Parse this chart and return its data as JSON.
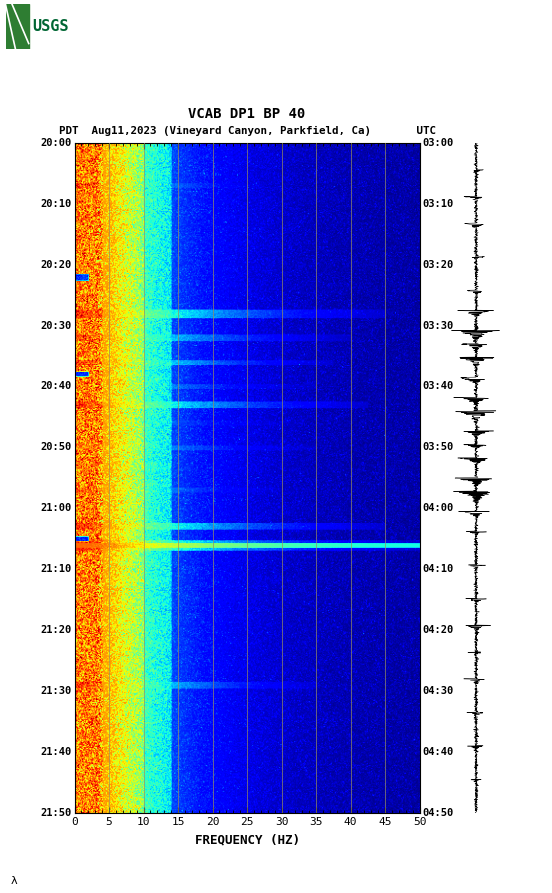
{
  "title_line1": "VCAB DP1 BP 40",
  "title_line2": "PDT  Aug11,2023 (Vineyard Canyon, Parkfield, Ca)       UTC",
  "xlabel": "FREQUENCY (HZ)",
  "left_times": [
    "20:00",
    "20:10",
    "20:20",
    "20:30",
    "20:40",
    "20:50",
    "21:00",
    "21:10",
    "21:20",
    "21:30",
    "21:40",
    "21:50"
  ],
  "right_times": [
    "03:00",
    "03:10",
    "03:20",
    "03:30",
    "03:40",
    "03:50",
    "04:00",
    "04:10",
    "04:20",
    "04:30",
    "04:40",
    "04:50"
  ],
  "freq_min": 0,
  "freq_max": 50,
  "freq_ticks": [
    0,
    5,
    10,
    15,
    20,
    25,
    30,
    35,
    40,
    45,
    50
  ],
  "vertical_lines_freq": [
    5,
    10,
    15,
    20,
    25,
    30,
    35,
    40,
    45
  ],
  "usgs_color": "#006633",
  "figsize": [
    5.52,
    8.93
  ],
  "dpi": 100
}
